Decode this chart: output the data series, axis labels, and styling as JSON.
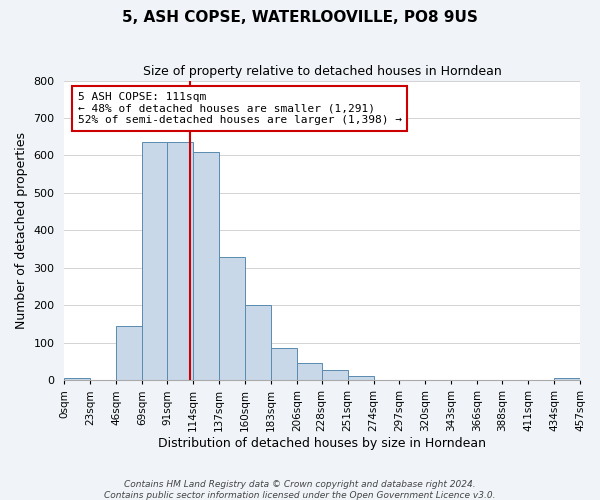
{
  "title": "5, ASH COPSE, WATERLOOVILLE, PO8 9US",
  "subtitle": "Size of property relative to detached houses in Horndean",
  "xlabel": "Distribution of detached houses by size in Horndean",
  "ylabel": "Number of detached properties",
  "bin_labels": [
    "0sqm",
    "23sqm",
    "46sqm",
    "69sqm",
    "91sqm",
    "114sqm",
    "137sqm",
    "160sqm",
    "183sqm",
    "206sqm",
    "228sqm",
    "251sqm",
    "274sqm",
    "297sqm",
    "320sqm",
    "343sqm",
    "366sqm",
    "388sqm",
    "411sqm",
    "434sqm",
    "457sqm"
  ],
  "bin_edges": [
    0,
    23,
    46,
    69,
    91,
    114,
    137,
    160,
    183,
    206,
    228,
    251,
    274,
    297,
    320,
    343,
    366,
    388,
    411,
    434,
    457
  ],
  "bar_heights": [
    5,
    0,
    145,
    635,
    635,
    610,
    330,
    200,
    85,
    47,
    28,
    12,
    0,
    0,
    0,
    0,
    0,
    0,
    0,
    5
  ],
  "bar_color": "#c8d8e8",
  "bar_edgecolor": "#5a8ab0",
  "property_value": 111,
  "vline_color": "#cc0000",
  "annotation_text": "5 ASH COPSE: 111sqm\n← 48% of detached houses are smaller (1,291)\n52% of semi-detached houses are larger (1,398) →",
  "annotation_box_edgecolor": "#cc0000",
  "ylim": [
    0,
    800
  ],
  "yticks": [
    0,
    100,
    200,
    300,
    400,
    500,
    600,
    700,
    800
  ],
  "footer1": "Contains HM Land Registry data © Crown copyright and database right 2024.",
  "footer2": "Contains public sector information licensed under the Open Government Licence v3.0.",
  "bg_color": "#f0f4f8",
  "plot_bg_color": "#ffffff"
}
